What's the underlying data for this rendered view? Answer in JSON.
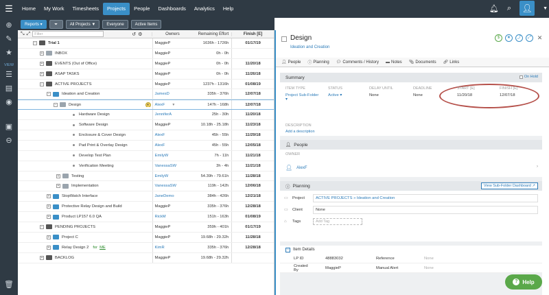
{
  "nav": {
    "items": [
      {
        "label": "Home",
        "active": false
      },
      {
        "label": "My Work",
        "active": false
      },
      {
        "label": "Timesheets",
        "active": false
      },
      {
        "label": "Projects",
        "active": true
      },
      {
        "label": "People",
        "active": false
      },
      {
        "label": "Dashboards",
        "active": false
      },
      {
        "label": "Analytics",
        "active": false
      },
      {
        "label": "Help",
        "active": false
      }
    ]
  },
  "rail": {
    "view_label": "VIEW"
  },
  "toolbar": {
    "reports": "Reports ▾",
    "all_projects": "All Projects ▼",
    "everyone": "Everyone",
    "active_items": "Active Items"
  },
  "grid": {
    "filter_placeholder": "Filter",
    "col_owners": "Owners",
    "col_effort": "Remaining Effort",
    "col_finish": "Finish [E]",
    "rows": [
      {
        "name": "Trial 1",
        "owner": "MaggieP",
        "effort": "1636h - 1726h",
        "finish": "01/17/19"
      },
      {
        "name": "INBOX",
        "owner": "MaggieP",
        "effort": "0h - 0h",
        "finish": ""
      },
      {
        "name": "EVENTS (Out of Office)",
        "owner": "MaggieP",
        "effort": "0h - 0h",
        "finish": "11/20/18"
      },
      {
        "name": "ASAP TASKS",
        "owner": "MaggieP",
        "effort": "0h - 0h",
        "finish": "11/26/18"
      },
      {
        "name": "ACTIVE PROJECTS",
        "owner": "MaggieP",
        "effort": "1237h - 1316h",
        "finish": "01/08/19"
      },
      {
        "name": "Ideation and Creation",
        "owner": "JamesD",
        "effort": "335h - 376h",
        "finish": "12/07/18"
      },
      {
        "name": "Design",
        "owner": "AlexF",
        "effort": "147h - 168h",
        "finish": "12/07/18"
      },
      {
        "name": "Hardware Design",
        "owner": "JenniferA",
        "effort": "25h - 30h",
        "finish": "11/20/18"
      },
      {
        "name": "Software Design",
        "owner": "MaggieP",
        "effort": "10.18h - 25.18h",
        "finish": "11/23/18"
      },
      {
        "name": "Enclosure & Cover Design",
        "owner": "AlexF",
        "effort": "45h - 55h",
        "finish": "11/29/18"
      },
      {
        "name": "Pad Print & Overlay Design",
        "owner": "AlexF",
        "effort": "45h - 55h",
        "finish": "12/05/18"
      },
      {
        "name": "Develop Test Plan",
        "owner": "EmilyW",
        "effort": "7h - 11h",
        "finish": "11/21/18"
      },
      {
        "name": "Verification Meeting",
        "owner": "VanessaSW",
        "effort": "3h - 4h",
        "finish": "11/21/18"
      },
      {
        "name": "Testing",
        "owner": "EmilyW",
        "effort": "54.39h - 79.61h",
        "finish": "11/28/18"
      },
      {
        "name": "Implementation",
        "owner": "VanessaSW",
        "effort": "119h - 142h",
        "finish": "12/06/18"
      },
      {
        "name": "StopWatch Interface",
        "owner": "JaneDemo",
        "effort": "384h - 426h",
        "finish": "12/21/18"
      },
      {
        "name": "Protective Relay Design and Build",
        "owner": "MaggieP",
        "effort": "335h - 376h",
        "finish": "12/28/18"
      },
      {
        "name": "Product LP157 6.0 QA",
        "owner": "RickM",
        "effort": "151h - 163h",
        "finish": "01/08/19"
      },
      {
        "name": "PENDING PROJECTS",
        "owner": "MaggieP",
        "effort": "359h - 401h",
        "finish": "01/17/19"
      },
      {
        "name": "Project C",
        "owner": "MaggieP",
        "effort": "19.68h - 29.32h",
        "finish": "11/28/18"
      },
      {
        "name": "Relay Design 2",
        "owner": "KimR",
        "effort": "335h - 376h",
        "finish": "12/28/18"
      },
      {
        "name": "BACKLOG",
        "owner": "MaggieP",
        "effort": "19.68h - 29.32h",
        "finish": ""
      }
    ],
    "for_me_prefix": "for",
    "for_me_link": "ME"
  },
  "panel": {
    "title": "Design",
    "breadcrumb": "Ideation and Creation",
    "tabs": [
      "People",
      "Planning",
      "Comments / History",
      "Notes",
      "Documents",
      "Links"
    ],
    "summary": {
      "heading": "Summary",
      "on_hold": "On Hold",
      "item_type_label": "ITEM TYPE",
      "item_type_value": "Project Sub-Folder ▾",
      "status_label": "STATUS",
      "status_value": "Active ▾",
      "delay_label": "DELAY UNTIL",
      "delay_value": "None",
      "deadline_label": "DEADLINE",
      "deadline_value": "None",
      "start_label": "START [E]",
      "start_value": "11/20/18",
      "finish_label": "FINISH [E]",
      "finish_value": "12/07/18",
      "description_label": "DESCRIPTION",
      "description_add": "Add a description"
    },
    "people": {
      "heading": "People",
      "owner_label": "OWNER",
      "owner_value": "AlexF"
    },
    "planning": {
      "heading": "Planning",
      "dashboard_button": "View Sub-Folder Dashboard ↗",
      "project_label": "Project",
      "project_value": "ACTIVE PROJECTS » Ideation and Creation",
      "client_label": "Client",
      "client_value": "None",
      "tags_label": "Tags",
      "tags_placeholder": "Add Tag"
    },
    "item_details": {
      "heading": "Item Details",
      "lp_id_label": "LP ID",
      "lp_id_value": "48883032",
      "reference_label": "Reference",
      "reference_value": "None",
      "created_by_label": "Created By",
      "created_by_value": "MaggieP",
      "manual_alert_label": "Manual Alert",
      "manual_alert_value": "None"
    }
  },
  "help": {
    "label": "Help"
  }
}
